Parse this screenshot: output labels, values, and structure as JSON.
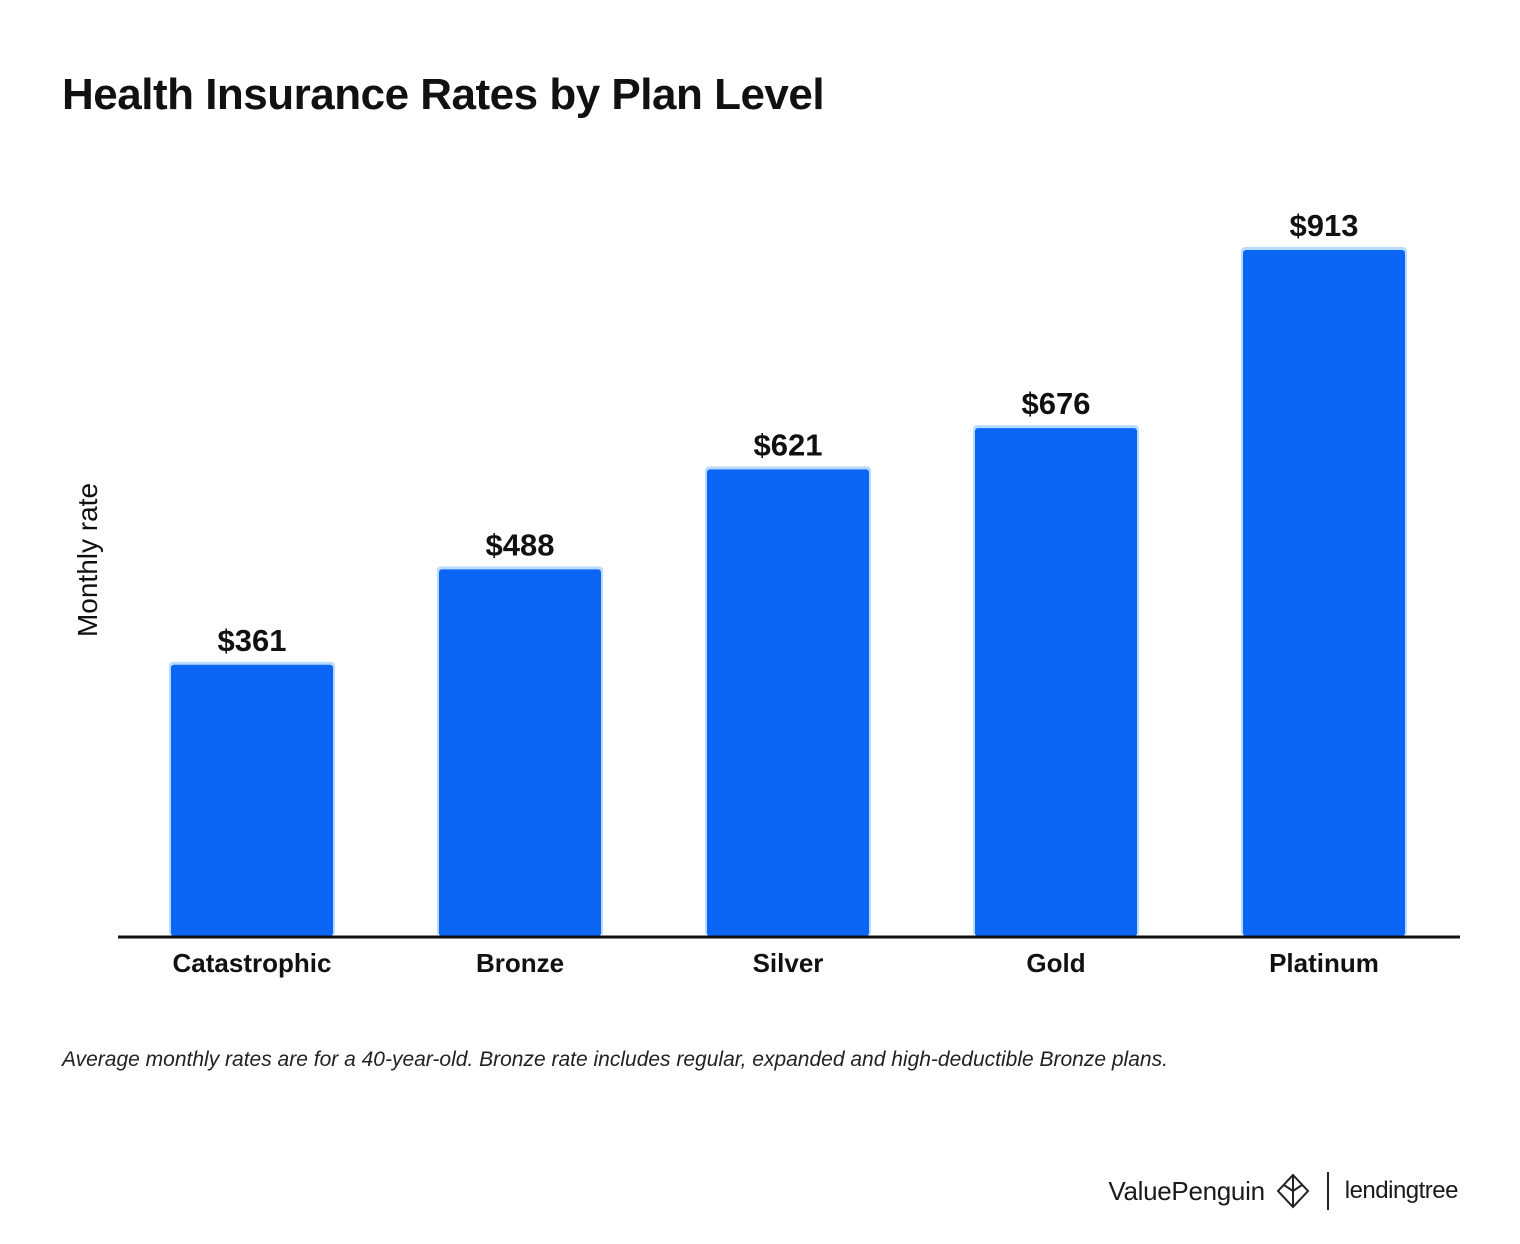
{
  "chart_data": {
    "type": "bar",
    "title": "Health Insurance Rates by Plan Level",
    "ylabel": "Monthly rate",
    "xlabel": "",
    "categories": [
      "Catastrophic",
      "Bronze",
      "Silver",
      "Gold",
      "Platinum"
    ],
    "values": [
      361,
      488,
      621,
      676,
      913
    ],
    "data_labels": [
      "$361",
      "$488",
      "$621",
      "$676",
      "$913"
    ],
    "ylim": [
      0,
      913
    ],
    "grid": false,
    "legend": "none",
    "bar_color": "#0b66f5",
    "bar_edge_color": "#b8dcff"
  },
  "footnote": "Average monthly rates are for a 40-year-old. Bronze rate includes regular, expanded and high-deductible Bronze plans.",
  "branding": {
    "valuepenguin": "ValuePenguin",
    "lendingtree": "lendingtree"
  }
}
